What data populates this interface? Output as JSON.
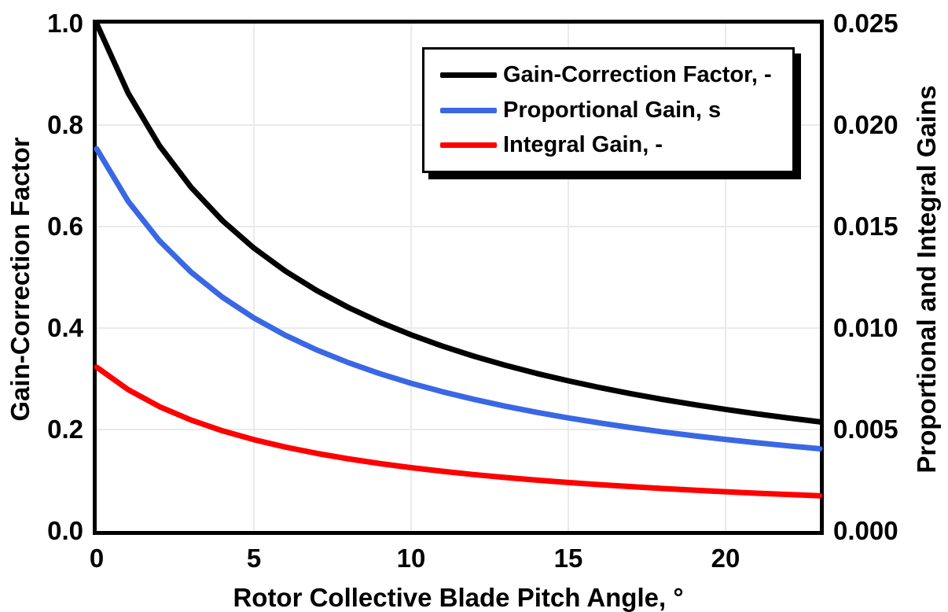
{
  "chart_data": {
    "type": "line",
    "title": "",
    "xlabel": "Rotor Collective Blade Pitch Angle, °",
    "ylabel_left": "Gain-Correction Factor",
    "ylabel_right": "Proportional and Integral Gains",
    "xlim": [
      0,
      23
    ],
    "ylim_left": [
      0.0,
      1.0
    ],
    "ylim_right": [
      0.0,
      0.025
    ],
    "grid": true,
    "grid_color": "#eaeaea",
    "legend_position": "top-right-inside",
    "line_width": 7,
    "axes": {
      "x": {
        "tick_values": [
          0,
          5,
          10,
          15,
          20
        ],
        "tick_labels": [
          "0",
          "5",
          "10",
          "15",
          "20"
        ]
      },
      "y_left": {
        "tick_values": [
          1.0,
          0.8,
          0.6,
          0.4,
          0.2,
          0.0
        ],
        "tick_labels": [
          "1.0",
          "0.8",
          "0.6",
          "0.4",
          "0.2",
          "0.0"
        ]
      },
      "y_right": {
        "tick_values": [
          0.025,
          0.02,
          0.015,
          0.01,
          0.005,
          0.0
        ],
        "tick_labels": [
          "0.025",
          "0.020",
          "0.015",
          "0.010",
          "0.005",
          "0.000"
        ]
      }
    },
    "x_gridlines": [
      5,
      10,
      15,
      20
    ],
    "y_gridlines": [
      0.2,
      0.4,
      0.6,
      0.8
    ],
    "x": [
      0,
      1,
      2,
      3,
      4,
      5,
      6,
      7,
      8,
      9,
      10,
      11,
      12,
      13,
      14,
      15,
      16,
      17,
      18,
      19,
      20,
      21,
      22,
      23
    ],
    "series": [
      {
        "name": "Gain-Correction Factor, -",
        "axis": "left",
        "color": "#000000",
        "values": [
          1.0,
          0.8631,
          0.7591,
          0.6775,
          0.6117,
          0.5576,
          0.5123,
          0.4738,
          0.4407,
          0.4119,
          0.3866,
          0.3643,
          0.3444,
          0.3265,
          0.3104,
          0.2959,
          0.2826,
          0.2705,
          0.2593,
          0.2491,
          0.2396,
          0.2308,
          0.2227,
          0.2151
        ]
      },
      {
        "name": "Proportional Gain, s",
        "axis": "right",
        "color": "#3A67E3",
        "values": [
          0.018827,
          0.016249,
          0.014291,
          0.012755,
          0.011517,
          0.010498,
          0.009645,
          0.00892,
          0.008297,
          0.007755,
          0.007278,
          0.006859,
          0.006484,
          0.006147,
          0.005844,
          0.005571,
          0.005321,
          0.005093,
          0.004882,
          0.00469,
          0.004511,
          0.004345,
          0.004193,
          0.00405
        ]
      },
      {
        "name": "Integral Gain, -",
        "axis": "right",
        "color": "#FF0000",
        "values": [
          0.008069,
          0.006964,
          0.006125,
          0.005467,
          0.004936,
          0.004499,
          0.004134,
          0.003823,
          0.003556,
          0.003323,
          0.003119,
          0.00294,
          0.002779,
          0.002634,
          0.002505,
          0.002388,
          0.00228,
          0.002183,
          0.002092,
          0.00201,
          0.001933,
          0.001862,
          0.001797,
          0.001736
        ]
      }
    ]
  }
}
